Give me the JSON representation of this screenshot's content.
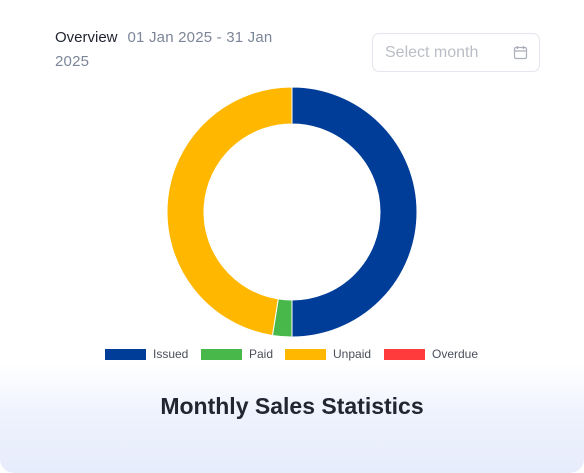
{
  "header": {
    "overview_label": "Overview",
    "date_range": "01 Jan 2025 - 31 Jan 2025"
  },
  "month_select": {
    "placeholder": "Select month",
    "icon": "calendar-icon"
  },
  "chart_data": {
    "type": "pie",
    "subtype": "doughnut",
    "title": "Monthly Sales Statistics",
    "series": [
      {
        "name": "Issued",
        "value": 50.0,
        "color": "#003d99"
      },
      {
        "name": "Paid",
        "value": 2.5,
        "color": "#48b84a"
      },
      {
        "name": "Unpaid",
        "value": 47.5,
        "color": "#ffb700"
      },
      {
        "name": "Overdue",
        "value": 0,
        "color": "#ff3b3b"
      }
    ],
    "legend_position": "bottom"
  }
}
